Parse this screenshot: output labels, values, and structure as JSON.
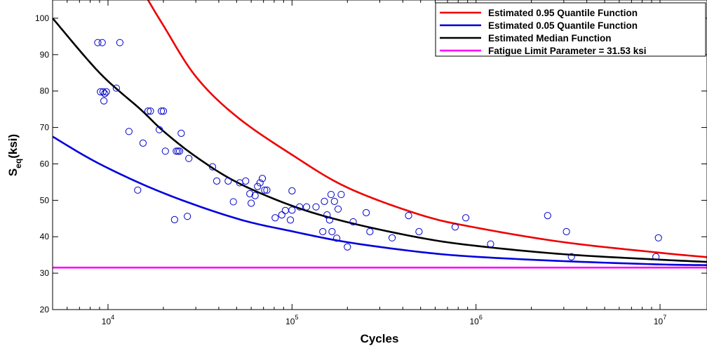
{
  "chart_data": {
    "type": "scatter",
    "xlabel": "Cycles",
    "ylabel_main": "S",
    "ylabel_sub": "eq",
    "ylabel_unit": "(ksi)",
    "x_scale": "log",
    "xlim": [
      5000,
      18000000
    ],
    "ylim": [
      20,
      105
    ],
    "grid": false,
    "legend_position": "top-right",
    "x_ticks": [
      {
        "value": 10000,
        "base": "10",
        "exp": "4"
      },
      {
        "value": 100000,
        "base": "10",
        "exp": "5"
      },
      {
        "value": 1000000,
        "base": "10",
        "exp": "6"
      },
      {
        "value": 10000000,
        "base": "10",
        "exp": "7"
      }
    ],
    "y_ticks": [
      20,
      30,
      40,
      50,
      60,
      70,
      80,
      90,
      100
    ],
    "curves": [
      {
        "name": "Estimated 0.95 Quantile Function",
        "color": "#ee0000",
        "points": [
          [
            16500,
            105
          ],
          [
            20000,
            98
          ],
          [
            30000,
            84
          ],
          [
            50000,
            73
          ],
          [
            100000,
            62.5
          ],
          [
            200000,
            53.5
          ],
          [
            500000,
            46
          ],
          [
            1000000,
            42.5
          ],
          [
            3000000,
            38.5
          ],
          [
            10000000,
            35.6
          ],
          [
            18000000,
            34.4
          ]
        ]
      },
      {
        "name": "Estimated 0.05 Quantile Function",
        "color": "#0000dd",
        "points": [
          [
            5000,
            67.5
          ],
          [
            9000,
            60
          ],
          [
            20000,
            52
          ],
          [
            50000,
            45
          ],
          [
            100000,
            41.5
          ],
          [
            200000,
            38.5
          ],
          [
            500000,
            35.8
          ],
          [
            1000000,
            34.5
          ],
          [
            3000000,
            33.3
          ],
          [
            10000000,
            32.4
          ],
          [
            18000000,
            32.2
          ]
        ]
      },
      {
        "name": "Estimated Median Function",
        "color": "#000000",
        "points": [
          [
            5000,
            100
          ],
          [
            9000,
            85
          ],
          [
            15000,
            75
          ],
          [
            20000,
            69
          ],
          [
            30000,
            62
          ],
          [
            50000,
            55
          ],
          [
            100000,
            48.5
          ],
          [
            200000,
            44
          ],
          [
            500000,
            39.7
          ],
          [
            1000000,
            37.5
          ],
          [
            3000000,
            35.2
          ],
          [
            10000000,
            33.7
          ],
          [
            18000000,
            33.1
          ]
        ]
      },
      {
        "name": "Fatigue Limit Parameter = 31.53  ksi",
        "color": "#ff00ff",
        "points": [
          [
            5000,
            31.53
          ],
          [
            18000000,
            31.53
          ]
        ]
      }
    ],
    "scatter_series": {
      "color": "#0000cc",
      "points": [
        [
          8800,
          93.3
        ],
        [
          9300,
          93.3
        ],
        [
          11600,
          93.3
        ],
        [
          9100,
          79.8
        ],
        [
          9400,
          79.8
        ],
        [
          9600,
          79.3
        ],
        [
          9800,
          79.8
        ],
        [
          9500,
          77.3
        ],
        [
          11100,
          80.8
        ],
        [
          13000,
          68.9
        ],
        [
          14500,
          52.8
        ],
        [
          15500,
          65.7
        ],
        [
          16500,
          74.5
        ],
        [
          17000,
          74.5
        ],
        [
          19000,
          69.4
        ],
        [
          19500,
          74.5
        ],
        [
          20000,
          74.5
        ],
        [
          20500,
          63.5
        ],
        [
          23000,
          44.7
        ],
        [
          23500,
          63.5
        ],
        [
          24000,
          63.5
        ],
        [
          24500,
          63.5
        ],
        [
          25000,
          68.4
        ],
        [
          27000,
          45.6
        ],
        [
          27500,
          61.5
        ],
        [
          37000,
          59.2
        ],
        [
          39000,
          55.3
        ],
        [
          45000,
          55.3
        ],
        [
          48000,
          49.6
        ],
        [
          52000,
          54.8
        ],
        [
          56000,
          55.3
        ],
        [
          59000,
          51.8
        ],
        [
          60000,
          49.2
        ],
        [
          63000,
          51.3
        ],
        [
          65000,
          53.8
        ],
        [
          67000,
          54.8
        ],
        [
          69000,
          56.0
        ],
        [
          71000,
          52.8
        ],
        [
          73000,
          52.8
        ],
        [
          81000,
          45.2
        ],
        [
          88000,
          46.0
        ],
        [
          92000,
          47.2
        ],
        [
          98000,
          44.6
        ],
        [
          100000,
          47.3
        ],
        [
          100000,
          52.6
        ],
        [
          110000,
          48.2
        ],
        [
          120000,
          48.2
        ],
        [
          135000,
          48.2
        ],
        [
          147000,
          41.4
        ],
        [
          150000,
          49.7
        ],
        [
          155000,
          46.0
        ],
        [
          160000,
          44.6
        ],
        [
          163000,
          51.6
        ],
        [
          165000,
          41.4
        ],
        [
          170000,
          49.7
        ],
        [
          175000,
          39.6
        ],
        [
          178000,
          47.6
        ],
        [
          185000,
          51.6
        ],
        [
          200000,
          37.2
        ],
        [
          215000,
          44.1
        ],
        [
          253000,
          46.6
        ],
        [
          265000,
          41.4
        ],
        [
          350000,
          39.7
        ],
        [
          430000,
          45.8
        ],
        [
          490000,
          41.4
        ],
        [
          770000,
          42.7
        ],
        [
          880000,
          45.2
        ],
        [
          1200000,
          38.0
        ],
        [
          2450000,
          45.8
        ],
        [
          3100000,
          41.4
        ],
        [
          3300000,
          34.5
        ],
        [
          9500000,
          34.5
        ],
        [
          9800000,
          39.7
        ]
      ]
    }
  }
}
